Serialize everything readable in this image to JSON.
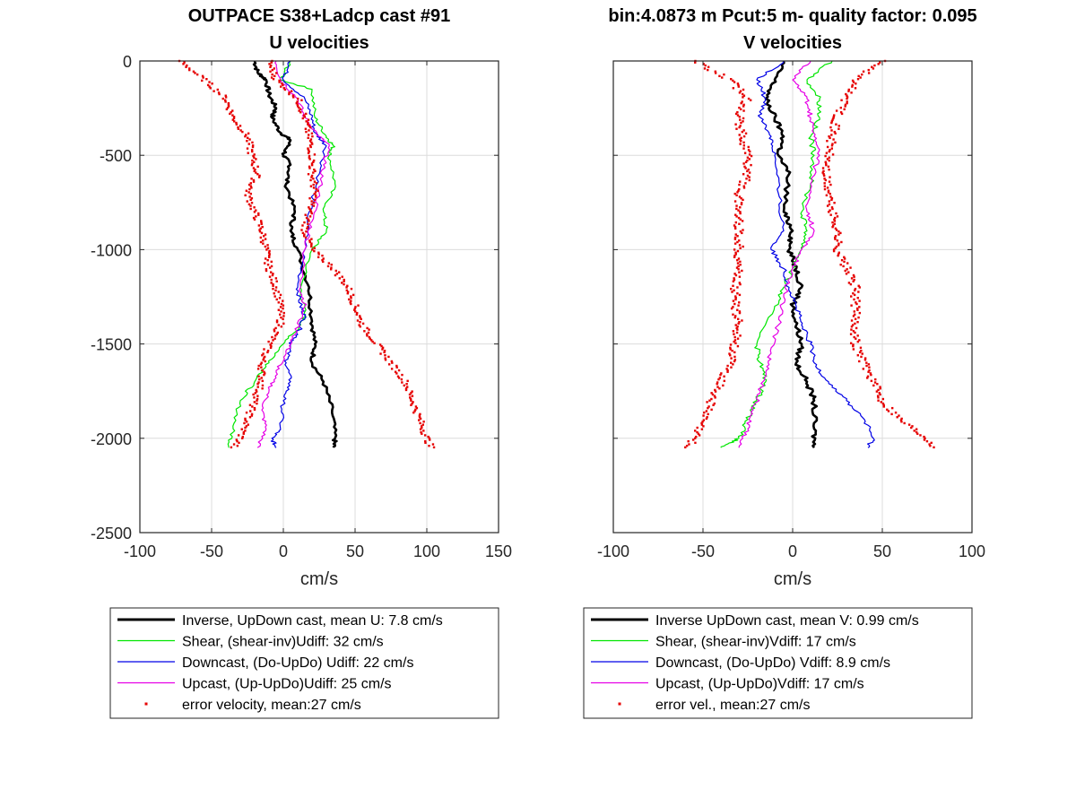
{
  "chart_data": [
    {
      "type": "line",
      "title": "OUTPACE S38+Ladcp cast #91",
      "subtitle": "U velocities",
      "xlabel": "cm/s",
      "ylabel": "",
      "xlim": [
        -100,
        150
      ],
      "ylim": [
        -2500,
        0
      ],
      "xticks": [
        -100,
        -50,
        0,
        50,
        100,
        150
      ],
      "yticks": [
        0,
        -500,
        -1000,
        -1500,
        -2000,
        -2500
      ],
      "xtick_labels": [
        "-100",
        "-50",
        "0",
        "50",
        "100",
        "150"
      ],
      "ytick_labels": [
        "0",
        "-500",
        "-1000",
        "-1500",
        "-2000",
        "-2500"
      ],
      "grid": true,
      "legend_position": "below",
      "series": [
        {
          "name": "Inverse, UpDown cast, mean U:  7.8 cm/s",
          "color": "#000000",
          "style": "line-thick",
          "x": [
            -20,
            -18,
            -12,
            -10,
            -5,
            -8,
            -2,
            5,
            0,
            5,
            2,
            8,
            5,
            10,
            18,
            20,
            22,
            20,
            28,
            34,
            36,
            35
          ],
          "y": [
            0,
            -60,
            -100,
            -180,
            -250,
            -300,
            -380,
            -420,
            -500,
            -550,
            -650,
            -800,
            -900,
            -1000,
            -1200,
            -1380,
            -1500,
            -1600,
            -1700,
            -1850,
            -2000,
            -2050
          ]
        },
        {
          "name": "Shear, (shear-inv)Udiff:  32 cm/s",
          "color": "#00e600",
          "style": "line",
          "x": [
            5,
            -2,
            20,
            22,
            30,
            35,
            32,
            36,
            28,
            30,
            20,
            12,
            15,
            12,
            0,
            -10,
            -20,
            -30,
            -35,
            -38
          ],
          "y": [
            0,
            -100,
            -150,
            -300,
            -400,
            -450,
            -500,
            -650,
            -800,
            -900,
            -1000,
            -1200,
            -1350,
            -1400,
            -1500,
            -1600,
            -1700,
            -1800,
            -1950,
            -2050
          ]
        },
        {
          "name": "Downcast, (Do-UpDo) Udiff:  22 cm/s",
          "color": "#0000e6",
          "style": "line",
          "x": [
            5,
            0,
            15,
            20,
            22,
            30,
            25,
            18,
            15,
            10,
            12,
            15,
            10,
            5,
            2,
            5,
            0,
            -2,
            -8,
            -5
          ],
          "y": [
            0,
            -100,
            -200,
            -300,
            -380,
            -450,
            -600,
            -800,
            -1000,
            -1200,
            -1300,
            -1350,
            -1450,
            -1500,
            -1600,
            -1700,
            -1800,
            -1950,
            -2000,
            -2050
          ]
        },
        {
          "name": "Upcast, (Up-UpDo)Udiff:  25 cm/s",
          "color": "#e600e6",
          "style": "line",
          "x": [
            -5,
            -2,
            10,
            15,
            25,
            32,
            28,
            25,
            20,
            15,
            12,
            15,
            8,
            2,
            -5,
            -10,
            -15,
            -12,
            -18
          ],
          "y": [
            0,
            -100,
            -200,
            -300,
            -400,
            -450,
            -550,
            -700,
            -850,
            -1000,
            -1200,
            -1300,
            -1450,
            -1550,
            -1650,
            -1750,
            -1850,
            -1950,
            -2050
          ]
        },
        {
          "name": "error velocity, mean:27 cm/s",
          "color": "#e60000",
          "style": "points",
          "left_x": [
            -72,
            -55,
            -40,
            -35,
            -25,
            -22,
            -18,
            -25,
            -20,
            -15,
            -12,
            -10,
            -5,
            -2,
            -2,
            -10,
            -15,
            -15,
            -20,
            -25,
            -30,
            -35
          ],
          "right_x": [
            -10,
            -5,
            10,
            15,
            18,
            20,
            20,
            22,
            18,
            15,
            20,
            35,
            45,
            50,
            55,
            65,
            75,
            85,
            90,
            95,
            100,
            103
          ],
          "y": [
            0,
            -100,
            -200,
            -300,
            -400,
            -500,
            -600,
            -700,
            -800,
            -900,
            -1000,
            -1100,
            -1200,
            -1300,
            -1400,
            -1500,
            -1600,
            -1700,
            -1800,
            -1900,
            -2000,
            -2050
          ]
        }
      ]
    },
    {
      "type": "line",
      "title": "bin:4.0873 m  Pcut:5 m- quality factor:  0.095",
      "subtitle": "V velocities",
      "xlabel": "cm/s",
      "ylabel": "",
      "xlim": [
        -100,
        100
      ],
      "ylim": [
        -2500,
        0
      ],
      "xticks": [
        -100,
        -50,
        0,
        50,
        100
      ],
      "yticks": [
        0,
        -500,
        -1000,
        -1500,
        -2000,
        -2500
      ],
      "xtick_labels": [
        "-100",
        "-50",
        "0",
        "50",
        "100"
      ],
      "ytick_labels": [],
      "grid": true,
      "legend_position": "below",
      "series": [
        {
          "name": "Inverse UpDown cast, mean V:  0.99 cm/s",
          "color": "#000000",
          "style": "line-thick",
          "x": [
            -5,
            -10,
            -15,
            -10,
            -5,
            -8,
            -2,
            -5,
            0,
            -2,
            2,
            5,
            0,
            2,
            5,
            2,
            8,
            12,
            12,
            12
          ],
          "y": [
            0,
            -100,
            -200,
            -300,
            -400,
            -500,
            -600,
            -800,
            -900,
            -1000,
            -1100,
            -1200,
            -1300,
            -1400,
            -1500,
            -1600,
            -1700,
            -1800,
            -1950,
            -2050
          ]
        },
        {
          "name": "Shear, (shear-inv)Vdiff:  17 cm/s",
          "color": "#00e600",
          "style": "line",
          "x": [
            22,
            8,
            15,
            15,
            10,
            12,
            10,
            5,
            8,
            5,
            0,
            -5,
            -10,
            -20,
            -18,
            -15,
            -20,
            -25,
            -30,
            -40
          ],
          "y": [
            0,
            -100,
            -200,
            -300,
            -400,
            -500,
            -650,
            -800,
            -900,
            -1000,
            -1100,
            -1200,
            -1300,
            -1500,
            -1600,
            -1700,
            -1800,
            -1900,
            -2000,
            -2050
          ]
        },
        {
          "name": "Downcast, (Do-UpDo) Vdiff:  8.9 cm/s",
          "color": "#0000e6",
          "style": "line",
          "x": [
            -5,
            -20,
            -15,
            -18,
            -12,
            -10,
            -8,
            -5,
            -12,
            -5,
            -2,
            2,
            5,
            10,
            12,
            20,
            30,
            40,
            45,
            42
          ],
          "y": [
            0,
            -100,
            -200,
            -300,
            -400,
            -500,
            -700,
            -900,
            -1000,
            -1100,
            -1200,
            -1300,
            -1400,
            -1500,
            -1600,
            -1700,
            -1800,
            -1900,
            -2000,
            -2050
          ]
        },
        {
          "name": "Upcast, (Up-UpDo)Vdiff:  17 cm/s",
          "color": "#e600e6",
          "style": "line",
          "x": [
            10,
            0,
            8,
            10,
            12,
            15,
            10,
            8,
            12,
            5,
            0,
            -5,
            -8,
            -12,
            -15,
            -18,
            -22,
            -25,
            -30
          ],
          "y": [
            0,
            -100,
            -200,
            -300,
            -400,
            -500,
            -650,
            -800,
            -900,
            -1000,
            -1100,
            -1250,
            -1400,
            -1550,
            -1650,
            -1750,
            -1850,
            -1950,
            -2050
          ]
        },
        {
          "name": "error vel., mean:27 cm/s",
          "color": "#e60000",
          "style": "points",
          "left_x": [
            -55,
            -35,
            -25,
            -30,
            -28,
            -25,
            -25,
            -30,
            -30,
            -30,
            -30,
            -30,
            -32,
            -32,
            -30,
            -32,
            -35,
            -40,
            -45,
            -50,
            -55,
            -58
          ],
          "right_x": [
            50,
            35,
            30,
            25,
            22,
            20,
            18,
            20,
            22,
            25,
            25,
            30,
            35,
            35,
            35,
            35,
            40,
            45,
            50,
            60,
            75,
            80
          ],
          "y": [
            0,
            -100,
            -200,
            -300,
            -400,
            -500,
            -600,
            -700,
            -800,
            -900,
            -1000,
            -1100,
            -1200,
            -1300,
            -1400,
            -1500,
            -1600,
            -1700,
            -1800,
            -1900,
            -2000,
            -2050
          ]
        }
      ]
    }
  ]
}
